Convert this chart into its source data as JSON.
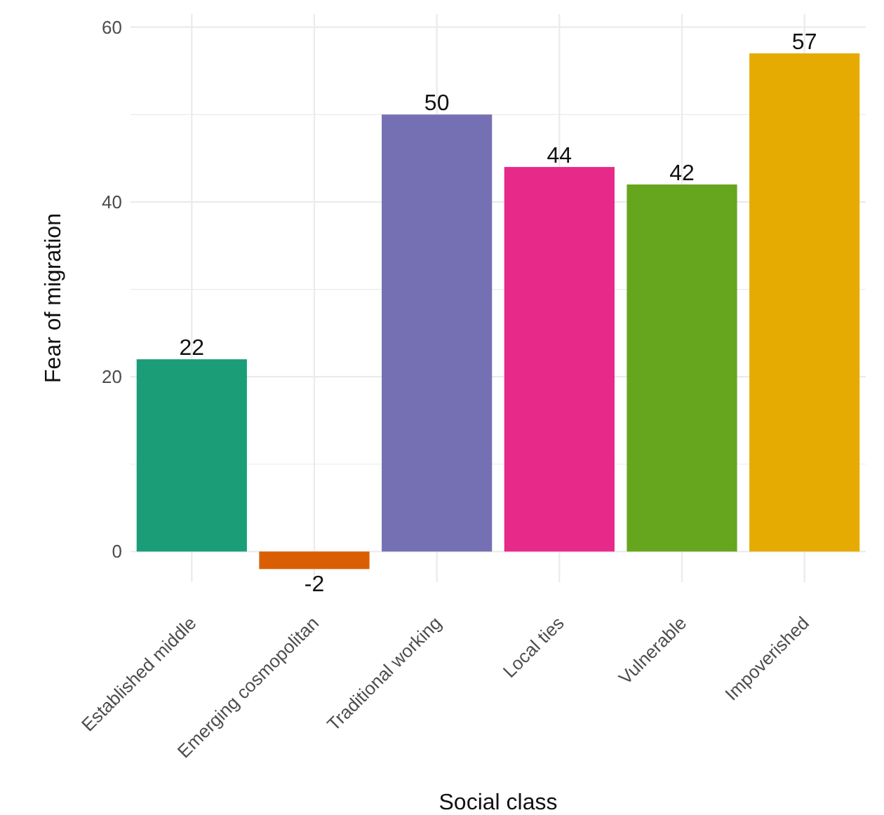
{
  "chart_data": {
    "type": "bar",
    "xlabel": "Social class",
    "ylabel": "Fear of migration",
    "categories": [
      "Established middle",
      "Emerging cosmopolitan",
      "Traditional working",
      "Local ties",
      "Vulnerable",
      "Impoverished"
    ],
    "values": [
      22,
      -2,
      50,
      44,
      42,
      57
    ],
    "colors": [
      "#1b9e77",
      "#d95f02",
      "#7570b3",
      "#e7298a",
      "#66a61e",
      "#e6ab02"
    ],
    "ylim": [
      -3.5,
      61.5
    ],
    "yticks": [
      0,
      {
        "value": 10,
        "label": null
      },
      20,
      {
        "value": 30,
        "label": null
      },
      40,
      {
        "value": 50,
        "label": null
      },
      60
    ],
    "grid": true,
    "data_labels": true
  }
}
